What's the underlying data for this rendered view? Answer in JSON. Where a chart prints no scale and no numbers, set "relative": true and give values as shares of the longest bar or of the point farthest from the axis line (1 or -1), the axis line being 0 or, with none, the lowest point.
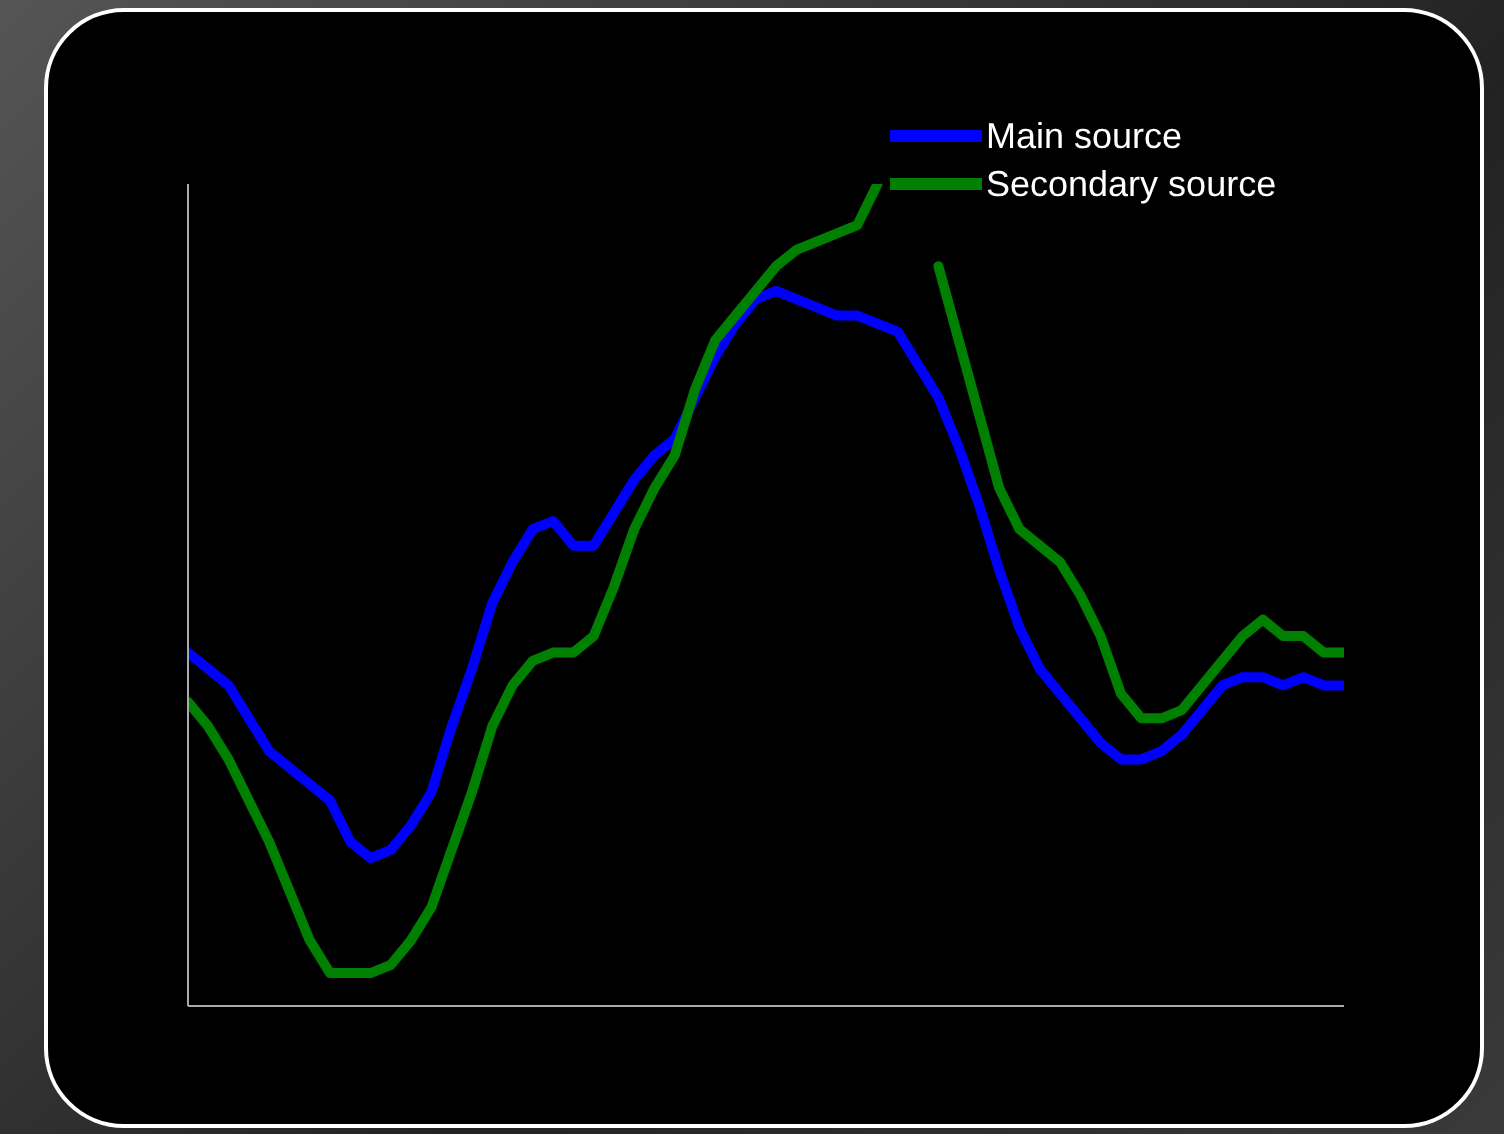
{
  "chart_data": {
    "type": "line",
    "relative": true,
    "legend": "top right",
    "categories": [
      null,
      null,
      null,
      null,
      null,
      null,
      null,
      null,
      null,
      null,
      null,
      null,
      null,
      null,
      null,
      null,
      null,
      null,
      null,
      null,
      null,
      null,
      null,
      null,
      null,
      null,
      null,
      null,
      null,
      null,
      null,
      null,
      null,
      null,
      null,
      null,
      null,
      null,
      null,
      null,
      null,
      null,
      null,
      null,
      null,
      null,
      null,
      null,
      null,
      null,
      null,
      null,
      null,
      null,
      null,
      null,
      null,
      null
    ],
    "series": [
      {
        "name": "Main source",
        "color": "#0000ff",
        "values": [
          0.43,
          0.41,
          0.39,
          0.35,
          0.31,
          0.29,
          0.27,
          0.25,
          0.2,
          0.18,
          0.19,
          0.22,
          0.26,
          0.34,
          0.41,
          0.49,
          0.54,
          0.58,
          0.59,
          0.56,
          0.56,
          0.6,
          0.64,
          0.67,
          0.69,
          0.74,
          0.79,
          0.83,
          0.86,
          0.87,
          0.86,
          0.85,
          0.84,
          0.84,
          0.83,
          0.82,
          0.78,
          0.74,
          0.68,
          0.61,
          0.53,
          0.46,
          0.41,
          0.38,
          0.35,
          0.32,
          0.3,
          0.3,
          0.31,
          0.33,
          0.36,
          0.39,
          0.4,
          0.4,
          0.39,
          0.4,
          0.39,
          0.39
        ]
      },
      {
        "name": "Secondary source",
        "color": "#008000",
        "values": [
          0.37,
          0.34,
          0.3,
          0.25,
          0.2,
          0.14,
          0.08,
          0.04,
          0.04,
          0.04,
          0.05,
          0.08,
          0.12,
          0.19,
          0.26,
          0.34,
          0.39,
          0.42,
          0.43,
          0.43,
          0.45,
          0.51,
          0.58,
          0.63,
          0.67,
          0.75,
          0.81,
          0.84,
          0.87,
          0.9,
          0.92,
          0.93,
          0.94,
          0.95,
          1,
          null,
          null,
          0.9,
          0.81,
          0.72,
          0.63,
          0.58,
          0.56,
          0.54,
          0.5,
          0.45,
          0.38,
          0.35,
          0.35,
          0.36,
          0.39,
          0.42,
          0.45,
          0.47,
          0.45,
          0.45,
          0.43,
          0.43
        ]
      }
    ]
  }
}
